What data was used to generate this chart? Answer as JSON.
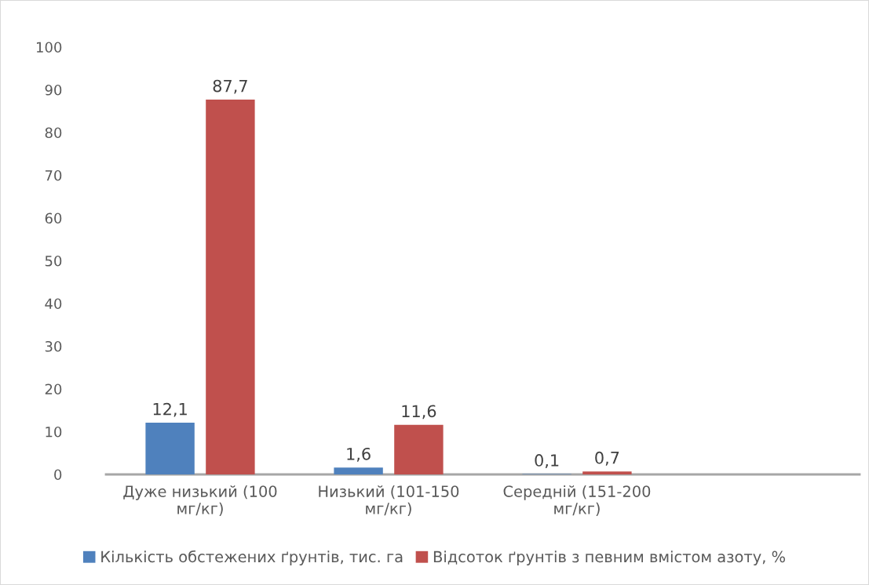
{
  "chart_data": {
    "type": "bar",
    "categories": [
      "Дуже низький (100\nмг/кг)",
      "Низький (101-150\nмг/кг)",
      "Середній (151-200\nмг/кг)",
      null
    ],
    "series": [
      {
        "name": "Кількість обстежених ґрунтів, тис. га",
        "color": "#4f81bd",
        "values": [
          12.1,
          1.6,
          0.1,
          null
        ],
        "value_labels": [
          "12,1",
          "1,6",
          "0,1",
          null
        ]
      },
      {
        "name": "Відсоток ґрунтів з певним вмістом азоту, %",
        "color": "#c0504d",
        "values": [
          87.7,
          11.6,
          0.7,
          null
        ],
        "value_labels": [
          "87,7",
          "11,6",
          "0,7",
          null
        ]
      }
    ],
    "ylim": [
      0,
      100
    ],
    "yticks": [
      0,
      10,
      20,
      30,
      40,
      50,
      60,
      70,
      80,
      90,
      100
    ],
    "grid": false,
    "legend": "bottom"
  }
}
